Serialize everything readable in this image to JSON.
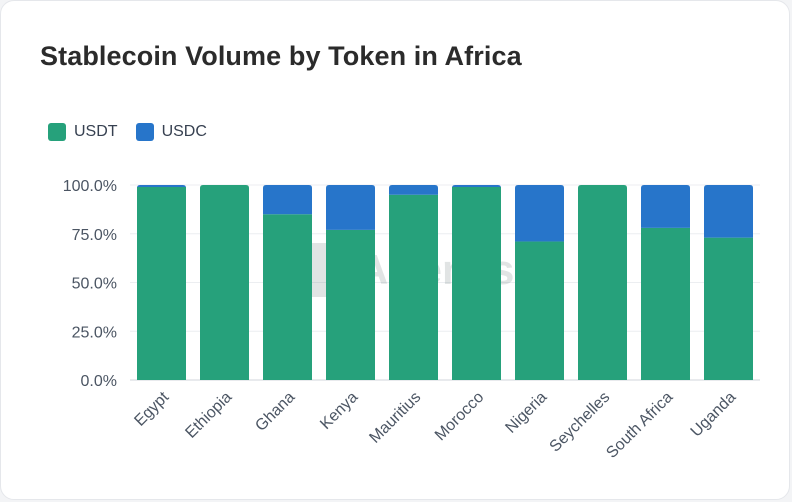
{
  "chart_data": {
    "type": "bar",
    "stacked": true,
    "title": "Stablecoin Volume by Token in Africa",
    "xlabel": "",
    "ylabel": "",
    "categories": [
      "Egypt",
      "Ethiopia",
      "Ghana",
      "Kenya",
      "Mauritius",
      "Morocco",
      "Nigeria",
      "Seychelles",
      "South Africa",
      "Uganda"
    ],
    "series": [
      {
        "name": "USDT",
        "color": "#26a17b",
        "values": [
          99,
          100,
          85,
          77,
          95,
          99,
          71,
          100,
          78,
          73
        ]
      },
      {
        "name": "USDC",
        "color": "#2775ca",
        "values": [
          1,
          0,
          15,
          23,
          5,
          1,
          29,
          0,
          22,
          27
        ]
      }
    ],
    "ylim": [
      0,
      100
    ],
    "yticks": [
      "0.0%",
      "25.0%",
      "50.0%",
      "75.0%",
      "100.0%"
    ],
    "grid": true,
    "legend_position": "top-left",
    "watermark": "Artemis"
  }
}
